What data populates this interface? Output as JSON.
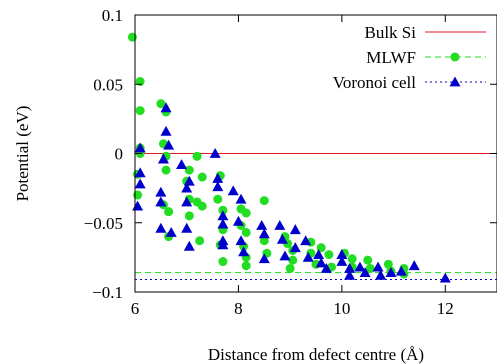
{
  "chart_data": {
    "type": "scatter",
    "title": "",
    "xlabel": "Distance from defect centre (Å)",
    "ylabel": "Potential (eV)",
    "xlim": [
      6,
      13
    ],
    "ylim": [
      -0.1,
      0.1
    ],
    "xticks": [
      6,
      8,
      10,
      12
    ],
    "xtick_labels": [
      "6",
      "8",
      "10",
      "12"
    ],
    "yticks": [
      -0.1,
      -0.05,
      0,
      0.05,
      0.1
    ],
    "ytick_labels": [
      "−0.1",
      "−0.05",
      "0",
      "0.05",
      "0.1"
    ],
    "grid": false,
    "legend_position": "top-right",
    "series": [
      {
        "name": "Bulk Si",
        "kind": "hline",
        "color": "#e41a1c",
        "style": "solid",
        "y": 0
      },
      {
        "name": "MLWF",
        "kind": "points-with-hline",
        "color": "#22dd22",
        "style": "dashed",
        "marker": "circle",
        "hline_y": -0.086,
        "points": [
          [
            5.95,
            0.084
          ],
          [
            6.1,
            0.052
          ],
          [
            6.1,
            0.031
          ],
          [
            6.1,
            0.004
          ],
          [
            6.1,
            0.0
          ],
          [
            6.05,
            -0.015
          ],
          [
            6.05,
            -0.03
          ],
          [
            6.5,
            0.036
          ],
          [
            6.6,
            0.03
          ],
          [
            6.55,
            0.007
          ],
          [
            6.6,
            -0.002
          ],
          [
            6.6,
            -0.012
          ],
          [
            6.55,
            -0.037
          ],
          [
            6.65,
            -0.042
          ],
          [
            6.65,
            -0.06
          ],
          [
            7.05,
            -0.012
          ],
          [
            7.0,
            -0.02
          ],
          [
            7.05,
            -0.033
          ],
          [
            7.05,
            -0.045
          ],
          [
            7.2,
            -0.002
          ],
          [
            7.3,
            -0.017
          ],
          [
            7.2,
            -0.035
          ],
          [
            7.3,
            -0.038
          ],
          [
            7.25,
            -0.063
          ],
          [
            7.65,
            -0.016
          ],
          [
            7.6,
            -0.033
          ],
          [
            7.7,
            -0.041
          ],
          [
            7.7,
            -0.055
          ],
          [
            7.65,
            -0.066
          ],
          [
            7.7,
            -0.078
          ],
          [
            8.05,
            -0.04
          ],
          [
            8.15,
            -0.043
          ],
          [
            8.05,
            -0.052
          ],
          [
            8.15,
            -0.057
          ],
          [
            8.1,
            -0.067
          ],
          [
            8.15,
            -0.075
          ],
          [
            8.15,
            -0.081
          ],
          [
            8.5,
            -0.034
          ],
          [
            8.5,
            -0.063
          ],
          [
            8.55,
            -0.072
          ],
          [
            8.9,
            -0.06
          ],
          [
            8.95,
            -0.065
          ],
          [
            9.05,
            -0.07
          ],
          [
            9.05,
            -0.077
          ],
          [
            9.0,
            -0.083
          ],
          [
            9.4,
            -0.064
          ],
          [
            9.4,
            -0.072
          ],
          [
            9.5,
            -0.08
          ],
          [
            9.6,
            -0.068
          ],
          [
            9.75,
            -0.073
          ],
          [
            9.8,
            -0.082
          ],
          [
            10.05,
            -0.072
          ],
          [
            10.2,
            -0.076
          ],
          [
            10.2,
            -0.082
          ],
          [
            10.5,
            -0.077
          ],
          [
            10.55,
            -0.083
          ],
          [
            10.9,
            -0.08
          ],
          [
            10.95,
            -0.085
          ],
          [
            11.2,
            -0.083
          ],
          [
            11.2,
            -0.087
          ]
        ]
      },
      {
        "name": "Voronoi cell",
        "kind": "points-with-hline",
        "color": "#0000cc",
        "style": "dotted",
        "marker": "triangle",
        "hline_y": -0.091,
        "points": [
          [
            6.1,
            0.004
          ],
          [
            6.1,
            -0.014
          ],
          [
            6.1,
            -0.022
          ],
          [
            6.05,
            -0.038
          ],
          [
            6.6,
            0.033
          ],
          [
            6.6,
            0.016
          ],
          [
            6.65,
            0.006
          ],
          [
            6.55,
            -0.004
          ],
          [
            6.5,
            -0.028
          ],
          [
            6.5,
            -0.035
          ],
          [
            6.5,
            -0.054
          ],
          [
            6.7,
            -0.057
          ],
          [
            6.9,
            -0.008
          ],
          [
            7.05,
            -0.02
          ],
          [
            7.0,
            -0.025
          ],
          [
            7.0,
            -0.035
          ],
          [
            7.0,
            -0.054
          ],
          [
            7.05,
            -0.067
          ],
          [
            7.55,
            0.0
          ],
          [
            7.6,
            -0.018
          ],
          [
            7.6,
            -0.024
          ],
          [
            7.7,
            -0.045
          ],
          [
            7.7,
            -0.051
          ],
          [
            7.7,
            -0.063
          ],
          [
            7.7,
            -0.066
          ],
          [
            7.9,
            -0.027
          ],
          [
            8.05,
            -0.033
          ],
          [
            8.0,
            -0.049
          ],
          [
            8.05,
            -0.063
          ],
          [
            8.1,
            -0.071
          ],
          [
            8.45,
            -0.052
          ],
          [
            8.5,
            -0.058
          ],
          [
            8.5,
            -0.076
          ],
          [
            8.8,
            -0.052
          ],
          [
            8.85,
            -0.062
          ],
          [
            8.9,
            -0.074
          ],
          [
            9.1,
            -0.055
          ],
          [
            9.1,
            -0.068
          ],
          [
            9.3,
            -0.063
          ],
          [
            9.35,
            -0.075
          ],
          [
            9.55,
            -0.073
          ],
          [
            9.6,
            -0.079
          ],
          [
            9.7,
            -0.083
          ],
          [
            10.0,
            -0.073
          ],
          [
            10.0,
            -0.078
          ],
          [
            10.15,
            -0.083
          ],
          [
            10.15,
            -0.088
          ],
          [
            10.35,
            -0.082
          ],
          [
            10.45,
            -0.086
          ],
          [
            10.7,
            -0.082
          ],
          [
            10.75,
            -0.088
          ],
          [
            10.95,
            -0.086
          ],
          [
            11.15,
            -0.085
          ],
          [
            11.4,
            -0.081
          ],
          [
            12.0,
            -0.09
          ]
        ]
      }
    ]
  }
}
